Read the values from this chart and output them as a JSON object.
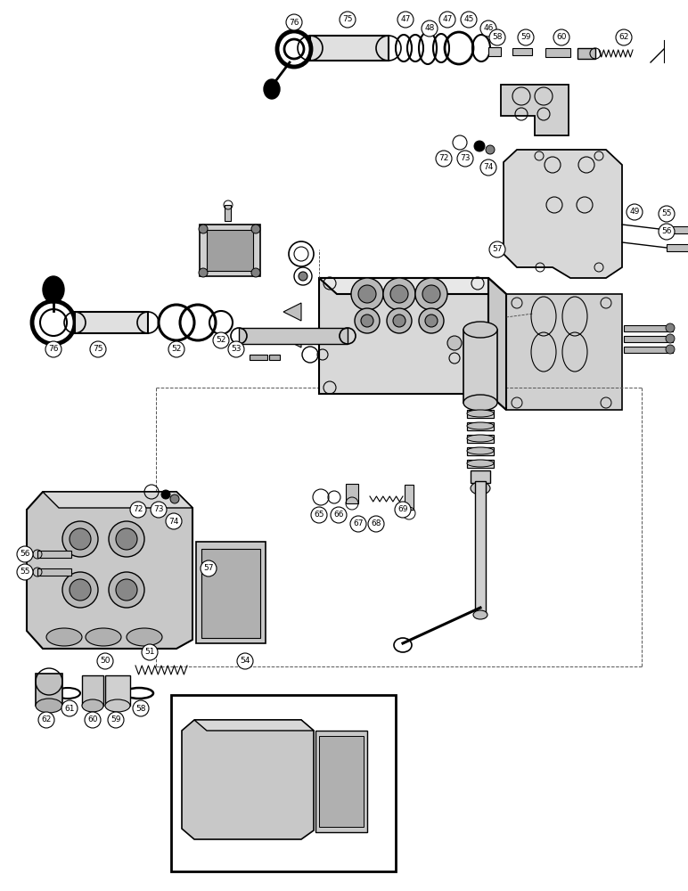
{
  "bg_color": "#ffffff",
  "line_color": "#000000",
  "figsize": [
    7.72,
    10.0
  ],
  "dpi": 100
}
